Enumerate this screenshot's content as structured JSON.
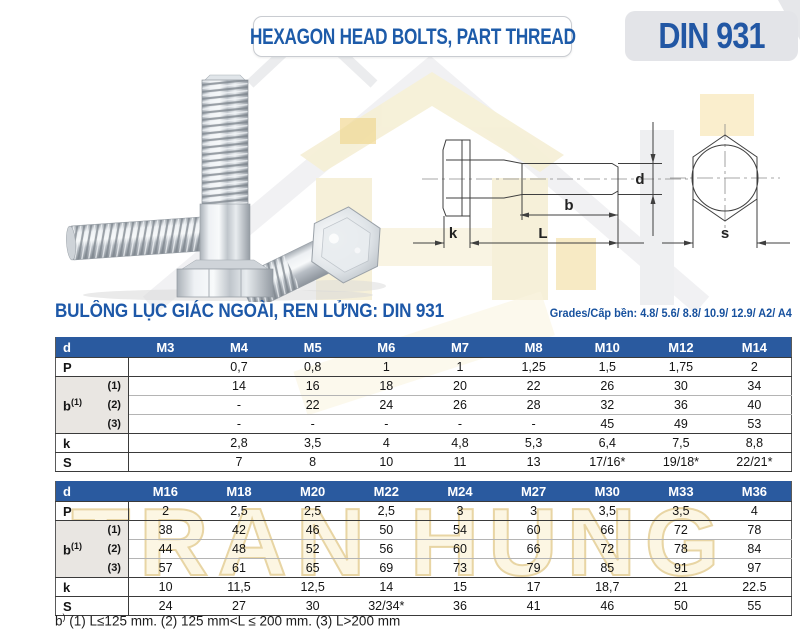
{
  "header": {
    "title_box": "HEXAGON HEAD BOLTS, PART THREAD",
    "din_box": "DIN 931"
  },
  "section": {
    "title": "BULÔNG LỤC GIÁC NGOÀI, REN LỬNG: DIN 931",
    "grades": "Grades/Cấp bền: 4.8/ 5.6/ 8.8/ 10.9/ 12.9/ A2/ A4"
  },
  "watermark": {
    "text": "TRAN HUNG"
  },
  "colors": {
    "accent_blue": "#1d58a8",
    "table_header_blue": "#2a5a9f",
    "label_gray": "#e9e6e2",
    "watermark_cream": "#f6f0d7",
    "badge_gray": "#e3e4e8"
  },
  "diagram": {
    "labels": {
      "d": "d",
      "b": "b",
      "k": "k",
      "L": "L",
      "s": "s"
    }
  },
  "tables": [
    {
      "corner_label": "d",
      "columns": [
        "M3",
        "M4",
        "M5",
        "M6",
        "M7",
        "M8",
        "M10",
        "M12",
        "M14"
      ],
      "row_groups": [
        {
          "label": "P",
          "rows": [
            {
              "sub": "",
              "cells": [
                "",
                "0,7",
                "0,8",
                "1",
                "1",
                "1,25",
                "1,5",
                "1,75",
                "2"
              ]
            }
          ]
        },
        {
          "label": "b",
          "label_sup": "(1)",
          "rows": [
            {
              "sub": "(1)",
              "cells": [
                "",
                "14",
                "16",
                "18",
                "20",
                "22",
                "26",
                "30",
                "34"
              ]
            },
            {
              "sub": "(2)",
              "cells": [
                "",
                "-",
                "22",
                "24",
                "26",
                "28",
                "32",
                "36",
                "40"
              ]
            },
            {
              "sub": "(3)",
              "cells": [
                "",
                "-",
                "-",
                "-",
                "-",
                "-",
                "45",
                "49",
                "53"
              ]
            }
          ]
        },
        {
          "label": "k",
          "rows": [
            {
              "sub": "",
              "cells": [
                "",
                "2,8",
                "3,5",
                "4",
                "4,8",
                "5,3",
                "6,4",
                "7,5",
                "8,8"
              ]
            }
          ]
        },
        {
          "label": "S",
          "rows": [
            {
              "sub": "",
              "cells": [
                "",
                "7",
                "8",
                "10",
                "11",
                "13",
                "17/16*",
                "19/18*",
                "22/21*"
              ]
            }
          ]
        }
      ]
    },
    {
      "corner_label": "d",
      "columns": [
        "M16",
        "M18",
        "M20",
        "M22",
        "M24",
        "M27",
        "M30",
        "M33",
        "M36"
      ],
      "row_groups": [
        {
          "label": "P",
          "rows": [
            {
              "sub": "",
              "cells": [
                "2",
                "2,5",
                "2,5",
                "2,5",
                "3",
                "3",
                "3,5",
                "3,5",
                "4"
              ]
            }
          ]
        },
        {
          "label": "b",
          "label_sup": "(1)",
          "rows": [
            {
              "sub": "(1)",
              "cells": [
                "38",
                "42",
                "46",
                "50",
                "54",
                "60",
                "66",
                "72",
                "78"
              ]
            },
            {
              "sub": "(2)",
              "cells": [
                "44",
                "48",
                "52",
                "56",
                "60",
                "66",
                "72",
                "78",
                "84"
              ]
            },
            {
              "sub": "(3)",
              "cells": [
                "57",
                "61",
                "65",
                "69",
                "73",
                "79",
                "85",
                "91",
                "97"
              ]
            }
          ]
        },
        {
          "label": "k",
          "rows": [
            {
              "sub": "",
              "cells": [
                "10",
                "11,5",
                "12,5",
                "14",
                "15",
                "17",
                "18,7",
                "21",
                "22.5"
              ]
            }
          ]
        },
        {
          "label": "S",
          "rows": [
            {
              "sub": "",
              "cells": [
                "24",
                "27",
                "30",
                "32/34*",
                "36",
                "41",
                "46",
                "50",
                "55"
              ]
            }
          ]
        }
      ]
    }
  ],
  "footnote": {
    "sym": "b",
    "sup": ")",
    "text": " (1) L≤125 mm. (2) 125 mm<L ≤ 200 mm. (3) L>200 mm"
  }
}
